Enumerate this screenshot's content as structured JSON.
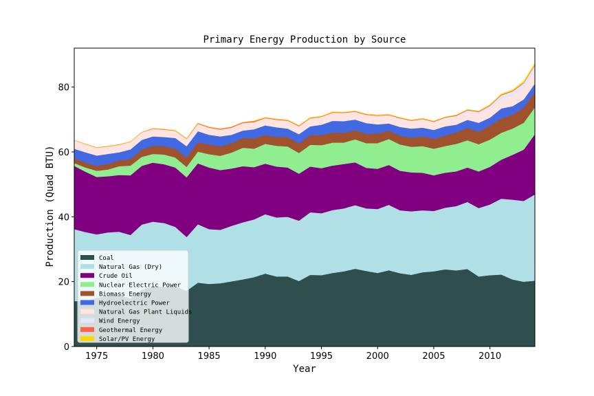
{
  "chart_data": {
    "type": "area",
    "stacked": true,
    "title": "Primary Energy Production by Source",
    "xlabel": "Year",
    "ylabel": "Production (Quad BTU)",
    "xlim": [
      1973,
      2014
    ],
    "ylim": [
      0,
      92
    ],
    "xticks": [
      1975,
      1980,
      1985,
      1990,
      1995,
      2000,
      2005,
      2010
    ],
    "yticks": [
      0,
      20,
      40,
      60,
      80
    ],
    "grid": false,
    "legend_position": "lower-left",
    "x": [
      1973,
      1974,
      1975,
      1976,
      1977,
      1978,
      1979,
      1980,
      1981,
      1982,
      1983,
      1984,
      1985,
      1986,
      1987,
      1988,
      1989,
      1990,
      1991,
      1992,
      1993,
      1994,
      1995,
      1996,
      1997,
      1998,
      1999,
      2000,
      2001,
      2002,
      2003,
      2004,
      2005,
      2006,
      2007,
      2008,
      2009,
      2010,
      2011,
      2012,
      2013,
      2014
    ],
    "series": [
      {
        "name": "Coal",
        "color": "#2f4f4f",
        "values": [
          14.0,
          14.1,
          15.0,
          15.7,
          15.8,
          14.9,
          17.5,
          18.6,
          18.4,
          18.6,
          17.2,
          19.7,
          19.3,
          19.5,
          20.1,
          20.7,
          21.4,
          22.5,
          21.6,
          21.6,
          20.2,
          22.1,
          22.0,
          22.7,
          23.2,
          24.0,
          23.3,
          22.7,
          23.5,
          22.6,
          22.1,
          22.9,
          23.2,
          23.8,
          23.5,
          23.9,
          21.6,
          22.0,
          22.2,
          20.7,
          20.0,
          20.3
        ]
      },
      {
        "name": "Natural Gas (Dry)",
        "color": "#b0e0e6",
        "values": [
          22.2,
          21.2,
          19.6,
          19.5,
          19.6,
          19.5,
          20.1,
          19.9,
          19.7,
          18.3,
          16.6,
          18.0,
          16.9,
          16.5,
          17.1,
          17.6,
          17.8,
          18.3,
          18.2,
          18.4,
          18.6,
          19.3,
          19.1,
          19.4,
          19.4,
          19.6,
          19.3,
          19.7,
          20.2,
          19.4,
          19.6,
          19.1,
          18.6,
          19.0,
          19.8,
          20.7,
          21.1,
          21.8,
          23.4,
          24.6,
          24.9,
          26.6
        ]
      },
      {
        "name": "Crude Oil",
        "color": "#800080",
        "values": [
          19.5,
          18.6,
          17.7,
          17.3,
          17.5,
          18.4,
          18.1,
          18.2,
          18.1,
          18.3,
          18.4,
          18.8,
          19.0,
          18.4,
          17.7,
          17.3,
          16.1,
          15.6,
          15.7,
          15.2,
          14.5,
          14.1,
          13.9,
          13.7,
          13.7,
          13.2,
          12.5,
          12.4,
          12.3,
          12.2,
          12.0,
          11.6,
          11.0,
          10.8,
          10.7,
          10.6,
          11.3,
          11.6,
          12.0,
          13.8,
          15.8,
          18.6
        ]
      },
      {
        "name": "Nuclear Electric Power",
        "color": "#90ee90",
        "values": [
          0.9,
          1.3,
          1.9,
          2.1,
          2.7,
          3.0,
          2.8,
          2.7,
          3.0,
          3.1,
          3.2,
          3.6,
          4.1,
          4.4,
          4.9,
          5.7,
          5.7,
          6.1,
          6.4,
          6.5,
          6.4,
          6.7,
          7.1,
          7.1,
          6.6,
          7.1,
          7.6,
          7.9,
          8.0,
          8.1,
          7.9,
          8.2,
          8.2,
          8.2,
          8.5,
          8.4,
          8.4,
          8.4,
          8.3,
          8.1,
          8.3,
          8.3
        ]
      },
      {
        "name": "Biomass Energy",
        "color": "#a0522d",
        "values": [
          1.5,
          1.5,
          1.5,
          1.7,
          1.8,
          2.0,
          2.2,
          2.5,
          2.6,
          2.7,
          2.9,
          2.9,
          3.0,
          2.9,
          2.9,
          3.0,
          3.2,
          2.7,
          2.7,
          2.9,
          2.9,
          3.0,
          3.1,
          3.1,
          3.0,
          2.8,
          2.9,
          3.0,
          2.6,
          2.7,
          2.8,
          3.0,
          3.1,
          3.2,
          3.5,
          3.8,
          3.9,
          4.3,
          4.4,
          4.3,
          4.6,
          4.8
        ]
      },
      {
        "name": "Hydroelectric Power",
        "color": "#4169e1",
        "values": [
          2.9,
          3.2,
          3.2,
          3.1,
          2.5,
          3.0,
          3.0,
          2.9,
          2.8,
          3.3,
          3.5,
          3.4,
          3.0,
          3.1,
          2.6,
          2.3,
          2.8,
          3.0,
          3.0,
          2.6,
          2.9,
          2.7,
          3.2,
          3.6,
          3.6,
          3.3,
          3.3,
          2.8,
          2.2,
          2.7,
          2.8,
          2.7,
          2.7,
          2.9,
          2.4,
          2.5,
          2.7,
          2.5,
          3.1,
          2.6,
          2.6,
          2.5
        ]
      },
      {
        "name": "Natural Gas Plant Liquids",
        "color": "#ffe4e1",
        "values": [
          2.6,
          2.5,
          2.4,
          2.3,
          2.3,
          2.3,
          2.3,
          2.3,
          2.3,
          2.2,
          2.2,
          2.3,
          2.2,
          2.1,
          2.2,
          2.3,
          2.2,
          2.2,
          2.3,
          2.4,
          2.4,
          2.4,
          2.4,
          2.5,
          2.5,
          2.4,
          2.5,
          2.6,
          2.5,
          2.6,
          2.3,
          2.5,
          2.3,
          2.4,
          2.4,
          2.4,
          2.6,
          2.7,
          2.9,
          3.2,
          3.4,
          3.9
        ]
      },
      {
        "name": "Wind Energy",
        "color": "#e6e6fa",
        "values": [
          0,
          0,
          0,
          0,
          0,
          0,
          0,
          0,
          0,
          0,
          0,
          0,
          0,
          0,
          0,
          0,
          0,
          0.03,
          0.03,
          0.03,
          0.03,
          0.04,
          0.03,
          0.03,
          0.03,
          0.03,
          0.05,
          0.06,
          0.07,
          0.1,
          0.12,
          0.14,
          0.18,
          0.26,
          0.34,
          0.55,
          0.72,
          0.92,
          1.17,
          1.34,
          1.6,
          1.73
        ]
      },
      {
        "name": "Geothermal Energy",
        "color": "#ff6347",
        "values": [
          0.04,
          0.05,
          0.07,
          0.08,
          0.08,
          0.06,
          0.08,
          0.11,
          0.12,
          0.1,
          0.13,
          0.16,
          0.2,
          0.22,
          0.23,
          0.22,
          0.32,
          0.17,
          0.18,
          0.18,
          0.19,
          0.17,
          0.15,
          0.17,
          0.16,
          0.15,
          0.17,
          0.16,
          0.16,
          0.16,
          0.16,
          0.17,
          0.18,
          0.18,
          0.19,
          0.19,
          0.2,
          0.21,
          0.21,
          0.21,
          0.21,
          0.21
        ]
      },
      {
        "name": "Solar/PV Energy",
        "color": "#ffd700",
        "values": [
          0,
          0,
          0,
          0,
          0,
          0,
          0,
          0,
          0,
          0,
          0,
          0,
          0,
          0,
          0,
          0,
          0.06,
          0.06,
          0.06,
          0.06,
          0.07,
          0.07,
          0.07,
          0.07,
          0.07,
          0.07,
          0.07,
          0.07,
          0.06,
          0.06,
          0.06,
          0.06,
          0.06,
          0.07,
          0.08,
          0.09,
          0.1,
          0.13,
          0.17,
          0.23,
          0.31,
          0.43
        ]
      }
    ]
  }
}
